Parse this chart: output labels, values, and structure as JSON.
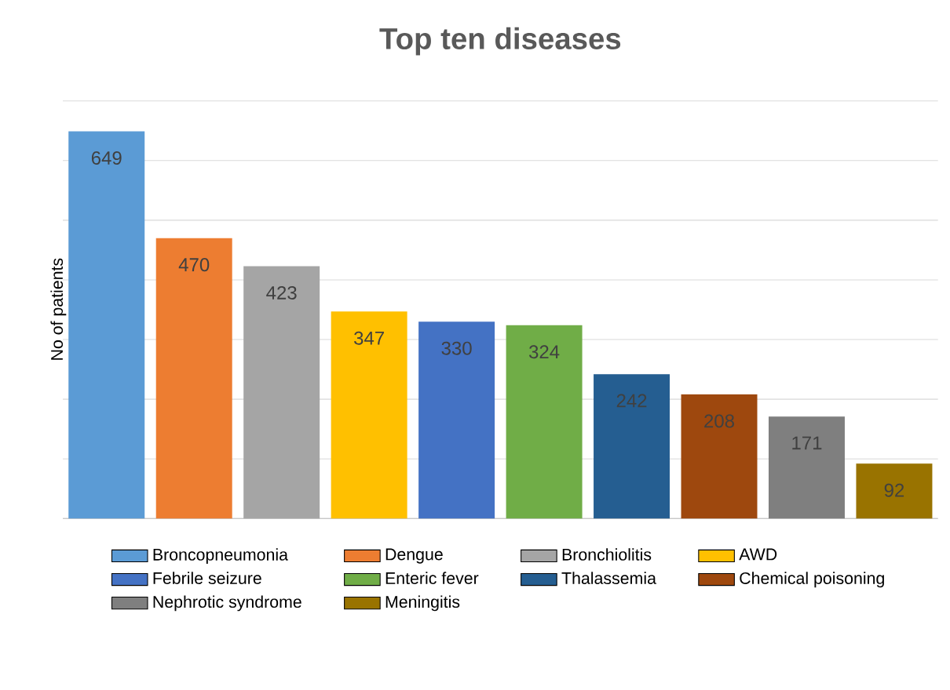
{
  "chart_data": {
    "type": "bar",
    "title": "Top ten diseases",
    "ylabel": "No of patients",
    "categories": [
      null
    ],
    "series": [
      {
        "name": "Broncopneumonia",
        "color": "#5b9bd5",
        "values": [
          649
        ]
      },
      {
        "name": "Dengue",
        "color": "#ed7d31",
        "values": [
          470
        ]
      },
      {
        "name": "Bronchiolitis",
        "color": "#a5a5a5",
        "values": [
          423
        ]
      },
      {
        "name": "AWD",
        "color": "#ffc000",
        "values": [
          347
        ]
      },
      {
        "name": "Febrile seizure",
        "color": "#4472c4",
        "values": [
          330
        ]
      },
      {
        "name": "Enteric fever",
        "color": "#70ad47",
        "values": [
          324
        ]
      },
      {
        "name": "Thalassemia",
        "color": "#255e91",
        "values": [
          242
        ]
      },
      {
        "name": "Chemical poisoning",
        "color": "#9e480e",
        "values": [
          208
        ]
      },
      {
        "name": "Nephrotic syndrome",
        "color": "#7f7f7f",
        "values": [
          171
        ]
      },
      {
        "name": "Meningitis",
        "color": "#997300",
        "values": [
          92
        ]
      }
    ],
    "grid": "y",
    "legend": "bottom",
    "data_labels": true,
    "tick_labels": false
  }
}
